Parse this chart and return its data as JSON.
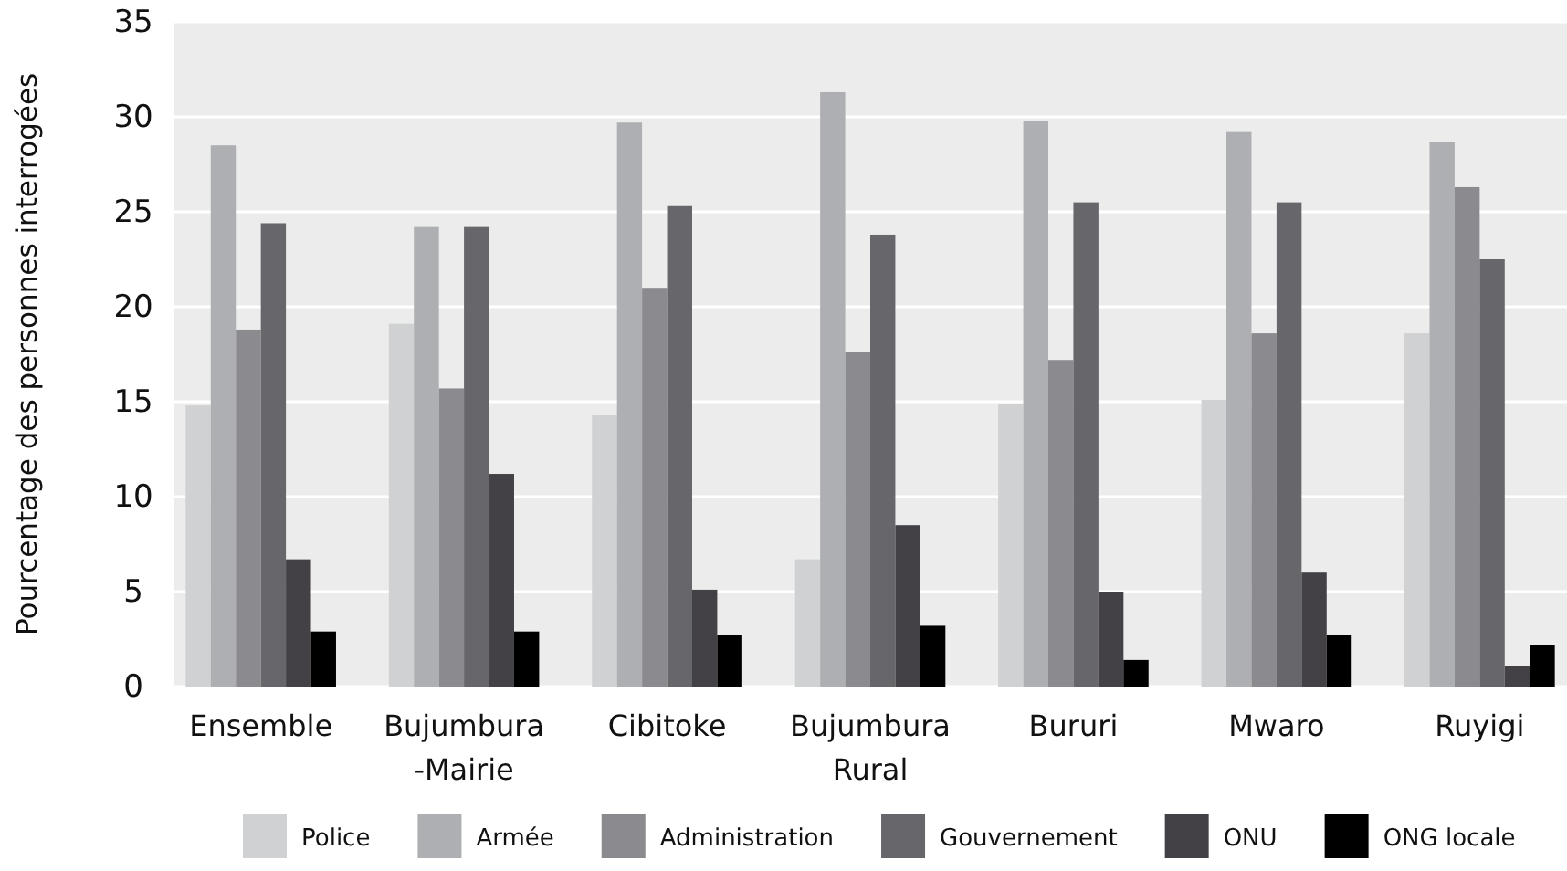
{
  "chart_data": {
    "type": "bar",
    "ylabel": "Pourcentage des personnes interrogées",
    "categories": [
      "Ensemble",
      "Bujumbura\n-Mairie",
      "Cibitoke",
      "Bujumbura\nRural",
      "Bururi",
      "Mwaro",
      "Ruyigi"
    ],
    "series": [
      {
        "name": "Police",
        "color": "#d0d1d3",
        "values": [
          14.8,
          19.1,
          14.3,
          6.7,
          14.9,
          15.1,
          18.6
        ]
      },
      {
        "name": "Armée",
        "color": "#aeafb2",
        "values": [
          28.5,
          24.2,
          29.7,
          31.3,
          29.8,
          29.2,
          28.7
        ]
      },
      {
        "name": "Administration",
        "color": "#8b8a8f",
        "values": [
          18.8,
          15.7,
          21.0,
          17.6,
          17.2,
          18.6,
          26.3
        ]
      },
      {
        "name": "Gouvernement",
        "color": "#67666b",
        "values": [
          24.4,
          24.2,
          25.3,
          23.8,
          25.5,
          25.5,
          22.5
        ]
      },
      {
        "name": "ONU",
        "color": "#434146",
        "values": [
          6.7,
          11.2,
          5.1,
          8.5,
          5.0,
          6.0,
          1.1
        ]
      },
      {
        "name": "ONG locale",
        "color": "#000000",
        "values": [
          2.9,
          2.9,
          2.7,
          3.2,
          1.4,
          2.7,
          2.2
        ]
      }
    ],
    "ylim": [
      0,
      35
    ],
    "yticks": [
      0,
      5,
      10,
      15,
      20,
      25,
      30,
      35
    ],
    "grid": "y",
    "legend": "bottom"
  }
}
